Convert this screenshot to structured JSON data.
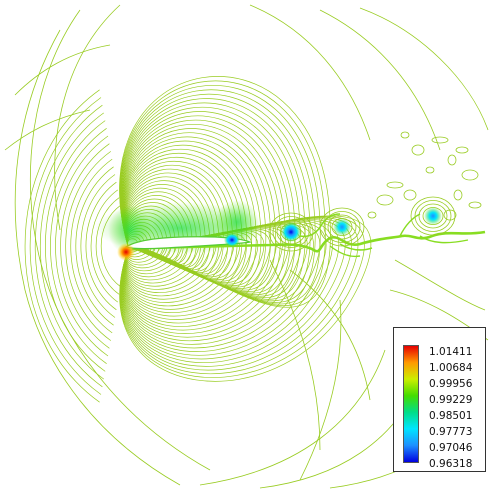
{
  "chart_data": {
    "type": "contour",
    "title": "",
    "xlabel": "",
    "ylabel": "",
    "colorbar": {
      "levels": [
        "1.01411",
        "1.00684",
        "0.99956",
        "0.99229",
        "0.98501",
        "0.97773",
        "0.97046",
        "0.96318"
      ],
      "colors": [
        "#e60000",
        "#ff9900",
        "#ccee00",
        "#44dd00",
        "#00dd88",
        "#00e5ff",
        "#1e90ff",
        "#0000e0"
      ]
    },
    "features": {
      "airfoil": "thin white body near left-center",
      "high_extreme_marker": "red spot at leading edge",
      "wake_vortices": 4
    },
    "line_color": "#99cc22",
    "grid": false,
    "legend_position": "bottom-right"
  }
}
